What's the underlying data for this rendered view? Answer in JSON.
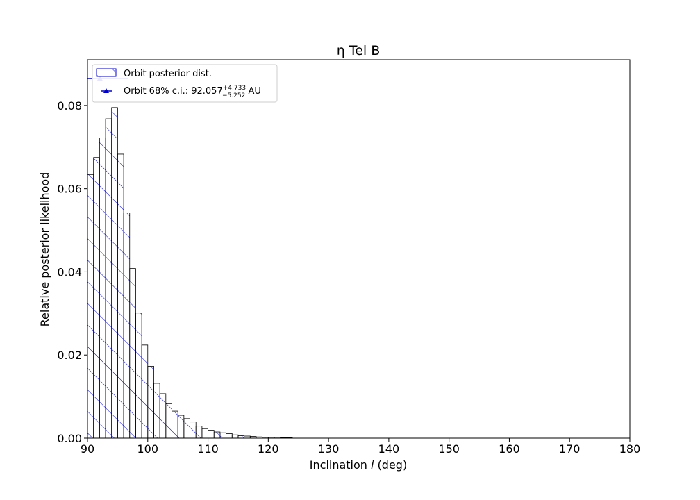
{
  "chart_data": {
    "type": "bar",
    "title": "η Tel B",
    "xlabel_prefix": "Inclination ",
    "xlabel_var": "i",
    "xlabel_suffix": " (deg)",
    "ylabel": "Relative posterior likelihood",
    "xlim": [
      90,
      180
    ],
    "ylim": [
      0,
      0.091
    ],
    "x_ticks": [
      90,
      100,
      110,
      120,
      130,
      140,
      150,
      160,
      170,
      180
    ],
    "y_ticks": [
      0.0,
      0.02,
      0.04,
      0.06,
      0.08
    ],
    "x_tick_labels": [
      "90",
      "100",
      "110",
      "120",
      "130",
      "140",
      "150",
      "160",
      "170",
      "180"
    ],
    "y_tick_labels": [
      "0.00",
      "0.02",
      "0.04",
      "0.06",
      "0.08"
    ],
    "bin_start": 90,
    "bin_width": 1,
    "values": [
      0.0634,
      0.0675,
      0.0722,
      0.0768,
      0.0795,
      0.0683,
      0.0542,
      0.0408,
      0.0301,
      0.0224,
      0.0173,
      0.0132,
      0.0107,
      0.0083,
      0.0065,
      0.0055,
      0.0047,
      0.0039,
      0.0029,
      0.0023,
      0.0019,
      0.0015,
      0.0013,
      0.0011,
      0.0008,
      0.0006,
      0.0005,
      0.0004,
      0.0003,
      0.0002,
      0.0002,
      0.0002,
      0.0001,
      0.0001
    ],
    "series_color": "#0000cc",
    "ci": {
      "value": 92.057,
      "upper_err": 4.733,
      "lower_err": 5.252,
      "marker_y": 0.0865
    },
    "legend": {
      "position": "top-left",
      "hist_label": "Orbit posterior dist.",
      "ci_label_prefix": "Orbit 68% c.i.: 92.057",
      "ci_label_sup": "+4.733",
      "ci_label_sub": "−5.252",
      "ci_label_suffix": " AU"
    }
  }
}
